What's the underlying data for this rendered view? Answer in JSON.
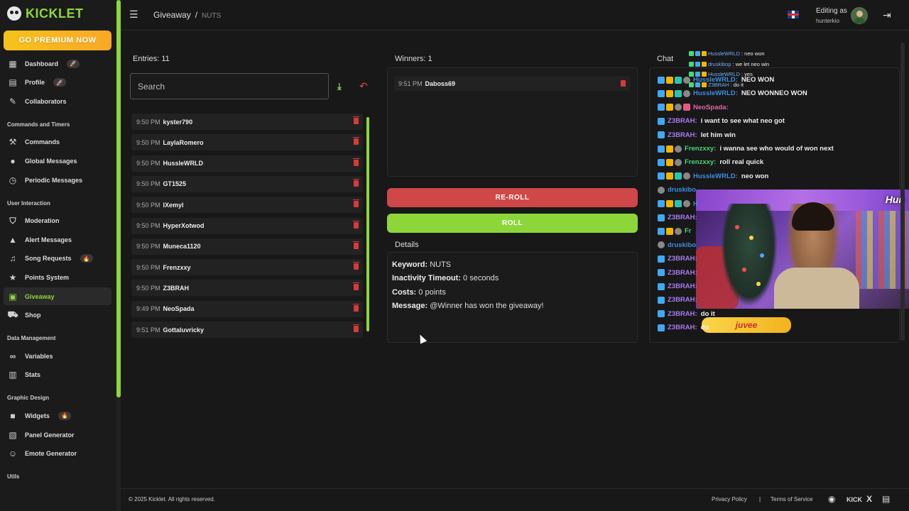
{
  "app": {
    "name": "KICKLET",
    "premium_label": "GO PREMIUM NOW"
  },
  "sidebar": {
    "top_items": [
      {
        "label": "Dashboard",
        "icon": "dashboard-icon",
        "badge": "🚀"
      },
      {
        "label": "Profile",
        "icon": "profile-icon",
        "badge": "🚀"
      },
      {
        "label": "Collaborators",
        "icon": "collaborators-icon",
        "badge": ""
      }
    ],
    "sections": [
      {
        "title": "Commands and Timers",
        "items": [
          {
            "label": "Commands",
            "icon": "hammer-icon"
          },
          {
            "label": "Global Messages",
            "icon": "chat-bubble-icon"
          },
          {
            "label": "Periodic Messages",
            "icon": "clock-icon"
          }
        ]
      },
      {
        "title": "User Interaction",
        "items": [
          {
            "label": "Moderation",
            "icon": "shield-icon"
          },
          {
            "label": "Alert Messages",
            "icon": "warning-icon"
          },
          {
            "label": "Song Requests",
            "icon": "music-icon",
            "badge": "🔥"
          },
          {
            "label": "Points System",
            "icon": "star-icon"
          },
          {
            "label": "Giveaway",
            "icon": "gift-icon",
            "active": true
          },
          {
            "label": "Shop",
            "icon": "cart-icon"
          }
        ]
      },
      {
        "title": "Data Management",
        "items": [
          {
            "label": "Variables",
            "icon": "link-icon"
          },
          {
            "label": "Stats",
            "icon": "bar-chart-icon"
          }
        ]
      },
      {
        "title": "Graphic Design",
        "items": [
          {
            "label": "Widgets",
            "icon": "video-icon",
            "badge": "🔥"
          },
          {
            "label": "Panel Generator",
            "icon": "panel-icon"
          },
          {
            "label": "Emote Generator",
            "icon": "smiley-icon"
          }
        ]
      },
      {
        "title": "Utils",
        "items": []
      }
    ]
  },
  "header": {
    "breadcrumb_root": "Giveaway",
    "breadcrumb_sep": "/",
    "breadcrumb_current": "NUTS",
    "editing_label": "Editing as",
    "editing_user": "hunterkio"
  },
  "entries": {
    "title": "Entries: 11",
    "search_placeholder": "Search",
    "list": [
      {
        "time": "9:50 PM",
        "name": "kyster790"
      },
      {
        "time": "9:50 PM",
        "name": "LaylaRomero"
      },
      {
        "time": "9:50 PM",
        "name": "HussleWRLD"
      },
      {
        "time": "9:50 PM",
        "name": "GT1525"
      },
      {
        "time": "9:50 PM",
        "name": "lXemyl"
      },
      {
        "time": "9:50 PM",
        "name": "HyperXotwod"
      },
      {
        "time": "9:50 PM",
        "name": "Muneca1120"
      },
      {
        "time": "9:50 PM",
        "name": "Frenzxxy"
      },
      {
        "time": "9:50 PM",
        "name": "Z3BRAH"
      },
      {
        "time": "9:49 PM",
        "name": "NeoSpada"
      },
      {
        "time": "9:51 PM",
        "name": "Gottaluvricky"
      }
    ]
  },
  "winners": {
    "title": "Winners: 1",
    "list": [
      {
        "time": "9:51 PM",
        "name": "Daboss69"
      }
    ]
  },
  "actions": {
    "reroll_label": "RE-ROLL",
    "roll_label": "ROLL"
  },
  "details": {
    "title": "Details",
    "keyword_label": "Keyword:",
    "keyword_value": "NUTS",
    "timeout_label": "Inactivity Timeout:",
    "timeout_value": "0 seconds",
    "costs_label": "Costs:",
    "costs_value": "0 points",
    "message_label": "Message:",
    "message_value": "@Winner has won the giveaway!"
  },
  "chat": {
    "title": "Chat",
    "overlay": [
      {
        "user": "HussleWRLD",
        "text": ": neo won"
      },
      {
        "user": "druskibop",
        "text": ": we let neo win"
      },
      {
        "user": "HussleWRLD",
        "text": ": yes"
      },
      {
        "user": "Z3BRAH",
        "text": ": do it"
      }
    ],
    "messages": [
      {
        "user": "HussleWRLD:",
        "text": "NEO WON",
        "color": "blue",
        "badges": [
          "blue",
          "gold",
          "teal",
          "grey"
        ]
      },
      {
        "user": "HussleWRLD:",
        "text": "NEO WONNEO WON",
        "color": "blue",
        "badges": [
          "blue",
          "gold",
          "teal",
          "grey"
        ]
      },
      {
        "user": "NeoSpada:",
        "text": "",
        "color": "pink",
        "badges": [
          "blue",
          "gold",
          "grey",
          "red"
        ]
      },
      {
        "user": "Z3BRAH:",
        "text": "i want to see what neo got",
        "color": "purple",
        "badges": [
          "blue"
        ]
      },
      {
        "user": "Z3BRAH:",
        "text": "let him win",
        "color": "purple",
        "badges": [
          "blue"
        ]
      },
      {
        "user": "Frenzxxy:",
        "text": "i wanna see who would of won next",
        "color": "green",
        "badges": [
          "blue",
          "gold",
          "grey"
        ]
      },
      {
        "user": "Frenzxxy:",
        "text": "roll real quick",
        "color": "green",
        "badges": [
          "blue",
          "gold",
          "grey"
        ]
      },
      {
        "user": "HussleWRLD:",
        "text": "neo won",
        "color": "blue",
        "badges": [
          "blue",
          "gold",
          "teal",
          "grey"
        ]
      },
      {
        "user": "druskibo",
        "text": "",
        "color": "blue",
        "badges": [
          "grey"
        ]
      },
      {
        "user": "H",
        "text": "",
        "color": "blue",
        "badges": [
          "blue",
          "gold",
          "teal",
          "grey"
        ]
      },
      {
        "user": "Z3BRAH:",
        "text": "",
        "color": "purple",
        "badges": [
          "blue"
        ]
      },
      {
        "user": "Fr",
        "text": "",
        "color": "green",
        "badges": [
          "blue",
          "gold",
          "grey"
        ]
      },
      {
        "user": "druskibo",
        "text": "",
        "color": "blue",
        "badges": [
          "grey"
        ]
      },
      {
        "user": "Z3BRAH:",
        "text": "",
        "color": "purple",
        "badges": [
          "blue"
        ]
      },
      {
        "user": "Z3BRAH:",
        "text": "",
        "color": "purple",
        "badges": [
          "blue"
        ]
      },
      {
        "user": "Z3BRAH:",
        "text": "",
        "color": "purple",
        "badges": [
          "blue"
        ]
      },
      {
        "user": "Z3BRAH:",
        "text": "",
        "color": "purple",
        "badges": [
          "blue"
        ]
      },
      {
        "user": "Z3BRAH:",
        "text": "do it",
        "color": "purple",
        "badges": [
          "blue"
        ]
      },
      {
        "user": "Z3BRAH:",
        "text": "do",
        "color": "purple",
        "badges": [
          "blue"
        ]
      }
    ],
    "webcam_logo": "Hun",
    "sponsor": "juvee"
  },
  "footer": {
    "copyright": "© 2025 Kicklet. All rights reserved.",
    "privacy": "Privacy Policy",
    "sep": "|",
    "terms": "Terms of Service",
    "kick": "KICK",
    "x": "X"
  }
}
